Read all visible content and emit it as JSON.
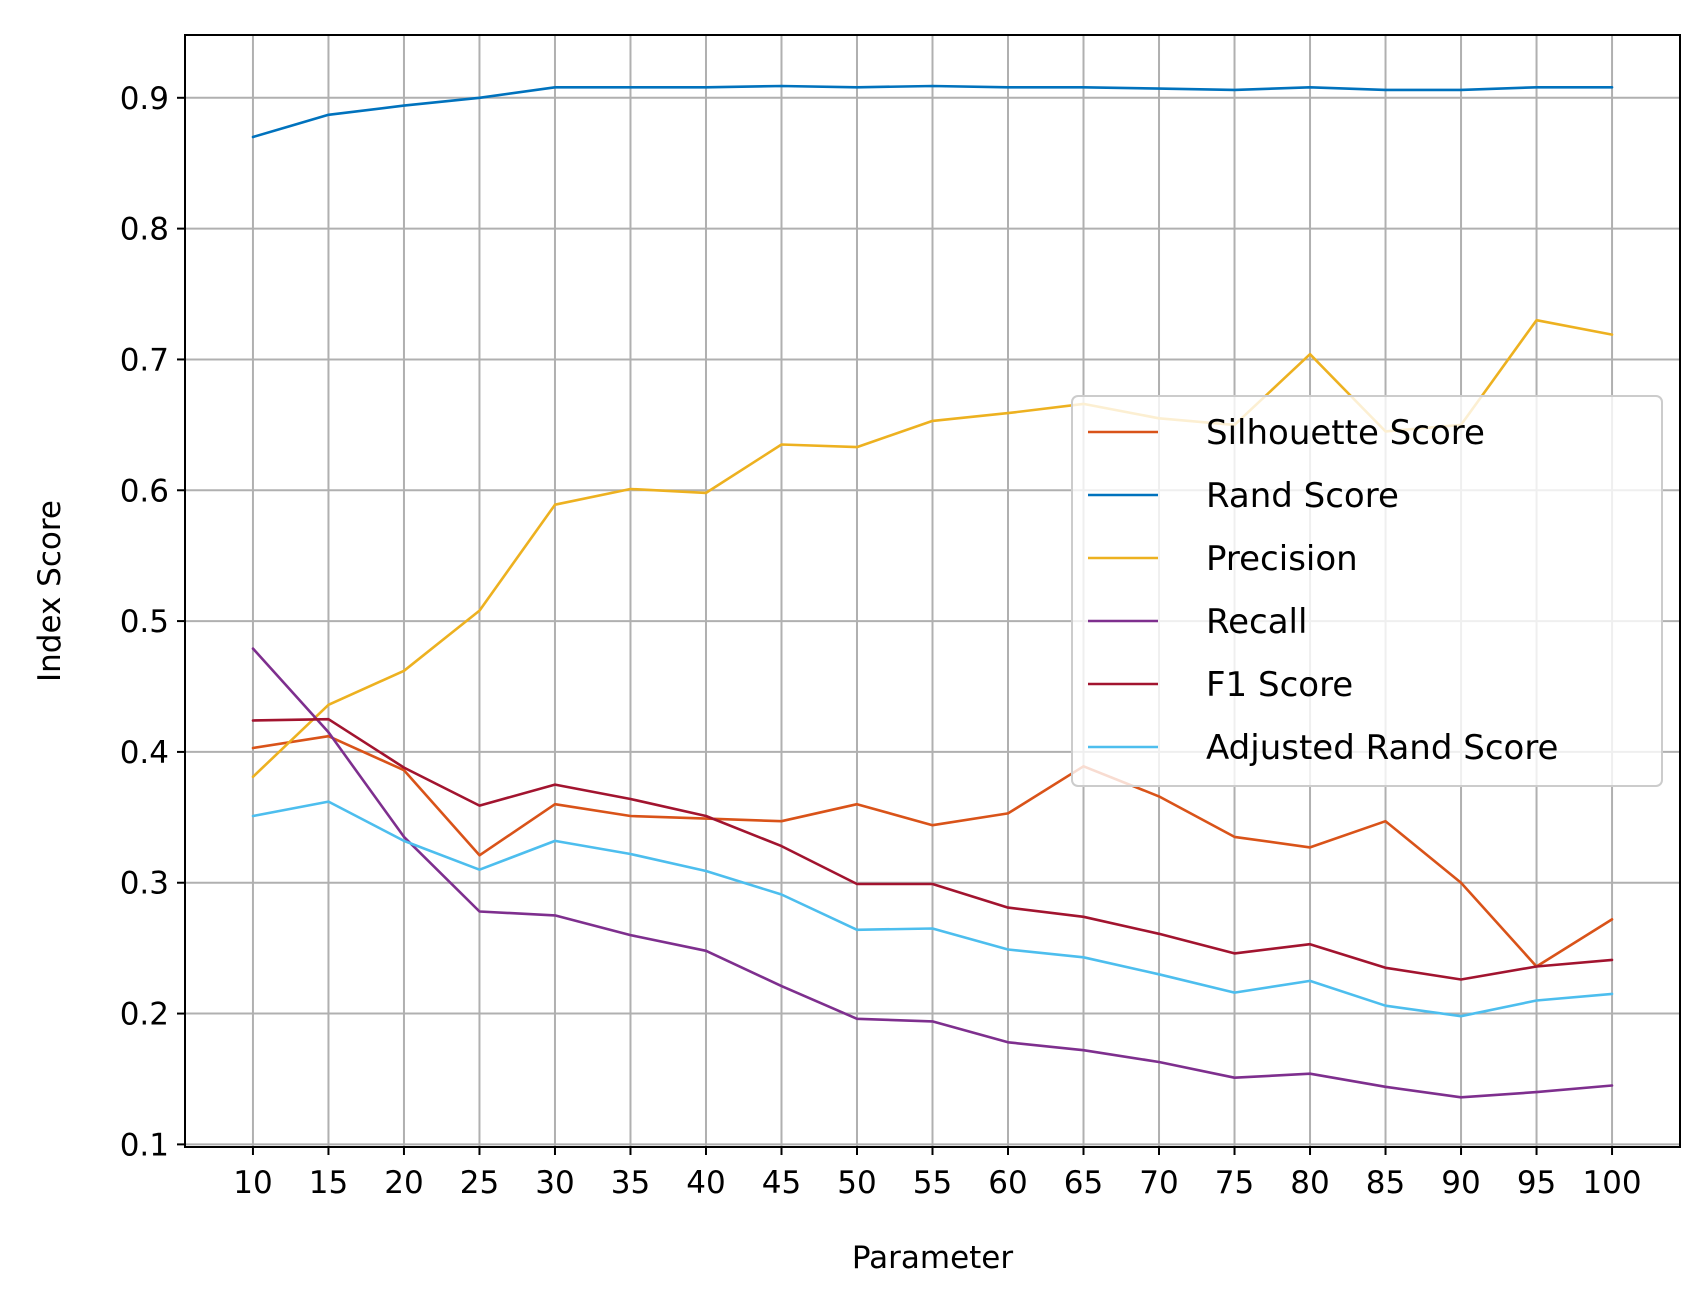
{
  "chart_data": {
    "type": "line",
    "title": "",
    "xlabel": "Parameter",
    "ylabel": "Index Score",
    "x": [
      10,
      15,
      20,
      25,
      30,
      35,
      40,
      45,
      50,
      55,
      60,
      65,
      70,
      75,
      80,
      85,
      90,
      95,
      100
    ],
    "xlim": [
      5.5,
      104.5
    ],
    "ylim": [
      0.098,
      0.948
    ],
    "yticks": [
      0.1,
      0.2,
      0.3,
      0.4,
      0.5,
      0.6,
      0.7,
      0.8,
      0.9
    ],
    "ytick_labels": [
      "0.1",
      "0.2",
      "0.3",
      "0.4",
      "0.5",
      "0.6",
      "0.7",
      "0.8",
      "0.9"
    ],
    "xtick_labels": [
      "10",
      "15",
      "20",
      "25",
      "30",
      "35",
      "40",
      "45",
      "50",
      "55",
      "60",
      "65",
      "70",
      "75",
      "80",
      "85",
      "90",
      "95",
      "100"
    ],
    "grid": true,
    "legend_position": "center-right",
    "series": [
      {
        "name": "Silhouette Score",
        "color": "#d95319",
        "values": [
          0.403,
          0.412,
          0.386,
          0.321,
          0.36,
          0.351,
          0.349,
          0.347,
          0.36,
          0.344,
          0.353,
          0.389,
          0.366,
          0.335,
          0.327,
          0.347,
          0.3,
          0.236,
          0.272
        ]
      },
      {
        "name": "Rand Score",
        "color": "#0072bd",
        "values": [
          0.87,
          0.887,
          0.894,
          0.9,
          0.908,
          0.908,
          0.908,
          0.909,
          0.908,
          0.909,
          0.908,
          0.908,
          0.907,
          0.906,
          0.908,
          0.906,
          0.906,
          0.908,
          0.908
        ]
      },
      {
        "name": "Precision",
        "color": "#edb120",
        "values": [
          0.381,
          0.436,
          0.462,
          0.508,
          0.589,
          0.601,
          0.598,
          0.635,
          0.633,
          0.653,
          0.659,
          0.666,
          0.655,
          0.65,
          0.704,
          0.645,
          0.65,
          0.73,
          0.719
        ]
      },
      {
        "name": "Recall",
        "color": "#7e2f8e",
        "values": [
          0.479,
          0.415,
          0.335,
          0.278,
          0.275,
          0.26,
          0.248,
          0.221,
          0.196,
          0.194,
          0.178,
          0.172,
          0.163,
          0.151,
          0.154,
          0.144,
          0.136,
          0.14,
          0.145
        ]
      },
      {
        "name": "F1 Score",
        "color": "#a2142f",
        "values": [
          0.424,
          0.425,
          0.388,
          0.359,
          0.375,
          0.364,
          0.351,
          0.328,
          0.299,
          0.299,
          0.281,
          0.274,
          0.261,
          0.246,
          0.253,
          0.235,
          0.226,
          0.236,
          0.241
        ]
      },
      {
        "name": "Adjusted Rand Score",
        "color": "#4dbeee",
        "values": [
          0.351,
          0.362,
          0.332,
          0.31,
          0.332,
          0.322,
          0.309,
          0.291,
          0.264,
          0.265,
          0.249,
          0.243,
          0.23,
          0.216,
          0.225,
          0.206,
          0.198,
          0.21,
          0.215
        ]
      }
    ]
  }
}
